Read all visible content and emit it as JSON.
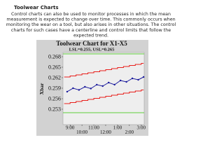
{
  "heading": "Toolwear Charts",
  "body": [
    "Control charts can also be used to monitor processes in which the mean",
    "measurement is expected to change over time. This commonly occurs when",
    "monitoring the wear on a tool, but also arises in other situations. The control",
    "charts for such cases have a centerline and control limits that follow the",
    "expected trend."
  ],
  "chart_data": {
    "type": "line",
    "title": "Toolwear Chart for X1-X5",
    "subtitle": "LSL=0.255, USL=0.265",
    "y_label": "Xbar",
    "xlim": [
      8.4,
      15.25
    ],
    "ylim": [
      0.2486,
      0.2692
    ],
    "xticks": [
      {
        "value": 9,
        "label": "9:00"
      },
      {
        "value": 10,
        "label": "10:00"
      },
      {
        "value": 11,
        "label": "11:00"
      },
      {
        "value": 12,
        "label": "12:00"
      },
      {
        "value": 13,
        "label": "1:00"
      },
      {
        "value": 14,
        "label": "2:00"
      },
      {
        "value": 15,
        "label": "3:00"
      }
    ],
    "yticks": [
      0.268,
      0.265,
      0.262,
      0.259,
      0.256,
      0.253
    ],
    "reference_lines": [
      {
        "value": 0.2688,
        "color": "#5fcf3a"
      },
      {
        "value": 0.252,
        "color": "#5fcf3a"
      }
    ],
    "series": [
      {
        "color": "#e8201c",
        "x": [
          8.5,
          9,
          9,
          9.5,
          9.5,
          10,
          10,
          10.5,
          10.5,
          11,
          11,
          11.5,
          11.5,
          12,
          12,
          12.5,
          12.5,
          13,
          13,
          13.5,
          13.5,
          14,
          14,
          14.5,
          14.5,
          15,
          15,
          15.2
        ],
        "values": [
          0.2622,
          0.2622,
          0.2625,
          0.2625,
          0.2628,
          0.2628,
          0.2631,
          0.2631,
          0.2634,
          0.2634,
          0.2637,
          0.2637,
          0.264,
          0.264,
          0.2643,
          0.2643,
          0.2646,
          0.2646,
          0.2649,
          0.2649,
          0.2652,
          0.2652,
          0.2655,
          0.2655,
          0.2658,
          0.2658,
          0.2661,
          0.2661
        ]
      },
      {
        "color": "#e8201c",
        "x": [
          8.5,
          9,
          9,
          9.5,
          9.5,
          10,
          10,
          10.5,
          10.5,
          11,
          11,
          11.5,
          11.5,
          12,
          12,
          12.5,
          12.5,
          13,
          13,
          13.5,
          13.5,
          14,
          14,
          14.5,
          14.5,
          15,
          15,
          15.2
        ],
        "values": [
          0.2546,
          0.2546,
          0.2549,
          0.2549,
          0.2552,
          0.2552,
          0.2555,
          0.2555,
          0.2558,
          0.2558,
          0.2561,
          0.2561,
          0.2564,
          0.2564,
          0.2567,
          0.2567,
          0.257,
          0.257,
          0.2573,
          0.2573,
          0.2576,
          0.2576,
          0.2579,
          0.2579,
          0.2582,
          0.2582,
          0.2585,
          0.2585
        ]
      },
      {
        "color": "#1a1a9c",
        "x": [
          8.75,
          9.25,
          9.75,
          10.25,
          10.75,
          11.25,
          11.75,
          12.25,
          12.75,
          13.25,
          13.75,
          14.25,
          14.75,
          15.2
        ],
        "values": [
          0.258,
          0.259,
          0.2585,
          0.2594,
          0.2589,
          0.26,
          0.2596,
          0.2606,
          0.26,
          0.2612,
          0.2608,
          0.2618,
          0.2614,
          0.2622
        ],
        "markers": true
      }
    ]
  }
}
